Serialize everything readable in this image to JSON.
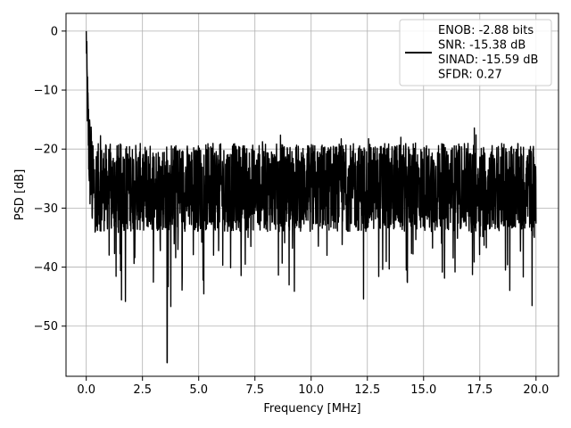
{
  "chart_data": {
    "type": "line",
    "title": "",
    "xlabel": "Frequency [MHz]",
    "ylabel": "PSD [dB]",
    "xlim": [
      -0.9,
      21.0
    ],
    "ylim": [
      -58.5,
      3.0
    ],
    "x_ticks": [
      0.0,
      2.5,
      5.0,
      7.5,
      10.0,
      12.5,
      15.0,
      17.5,
      20.0
    ],
    "x_tick_labels": [
      "0.0",
      "2.5",
      "5.0",
      "7.5",
      "10.0",
      "12.5",
      "15.0",
      "17.5",
      "20.0"
    ],
    "y_ticks": [
      0,
      -10,
      -20,
      -30,
      -40,
      -50
    ],
    "y_tick_labels": [
      "0",
      "−10",
      "−20",
      "−30",
      "−40",
      "−50"
    ],
    "grid": true,
    "legend_position": "top-right",
    "legend_lines": [
      "ENOB: -2.88 bits",
      "SNR: -15.38 dB",
      "SINAD: -15.59 dB",
      "SFDR: 0.27"
    ],
    "series": [
      {
        "color": "#000000",
        "x_range": [
          0.0,
          20.0
        ],
        "spectrum": {
          "peak_value": 0.0,
          "floor_band_top": -20.0,
          "floor_band_bottom": -33.0,
          "min_value": -56.2,
          "min_x": 3.6
        }
      }
    ]
  }
}
